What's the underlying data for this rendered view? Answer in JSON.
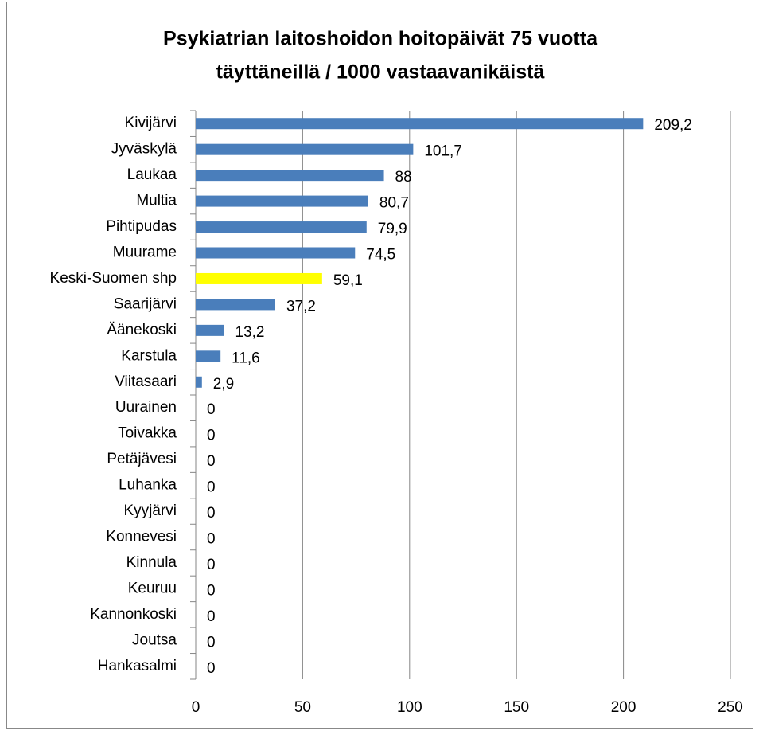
{
  "chart_data": {
    "type": "bar",
    "orientation": "horizontal",
    "title": [
      "Psykiatrian laitoshoidon hoitopäivät 75 vuotta",
      "täyttäneillä / 1000 vastaavanikäistä"
    ],
    "categories": [
      "Kivijärvi",
      "Jyväskylä",
      "Laukaa",
      "Multia",
      "Pihtipudas",
      "Muurame",
      "Keski-Suomen shp",
      "Saarijärvi",
      "Äänekoski",
      "Karstula",
      "Viitasaari",
      "Uurainen",
      "Toivakka",
      "Petäjävesi",
      "Luhanka",
      "Kyyjärvi",
      "Konnevesi",
      "Kinnula",
      "Keuruu",
      "Kannonkoski",
      "Joutsa",
      "Hankasalmi"
    ],
    "values": [
      209.2,
      101.7,
      88,
      80.7,
      79.9,
      74.5,
      59.1,
      37.2,
      13.2,
      11.6,
      2.9,
      0,
      0,
      0,
      0,
      0,
      0,
      0,
      0,
      0,
      0,
      0
    ],
    "value_labels": [
      "209,2",
      "101,7",
      "88",
      "80,7",
      "79,9",
      "74,5",
      "59,1",
      "37,2",
      "13,2",
      "11,6",
      "2,9",
      "0",
      "0",
      "0",
      "0",
      "0",
      "0",
      "0",
      "0",
      "0",
      "0",
      "0"
    ],
    "colors": [
      "#4a7ebb",
      "#4a7ebb",
      "#4a7ebb",
      "#4a7ebb",
      "#4a7ebb",
      "#4a7ebb",
      "#ffff00",
      "#4a7ebb",
      "#4a7ebb",
      "#4a7ebb",
      "#4a7ebb",
      "#4a7ebb",
      "#4a7ebb",
      "#4a7ebb",
      "#4a7ebb",
      "#4a7ebb",
      "#4a7ebb",
      "#4a7ebb",
      "#4a7ebb",
      "#4a7ebb",
      "#4a7ebb",
      "#4a7ebb"
    ],
    "xlim": [
      0,
      250
    ],
    "xticks": [
      0,
      50,
      100,
      150,
      200,
      250
    ],
    "grid": true
  }
}
